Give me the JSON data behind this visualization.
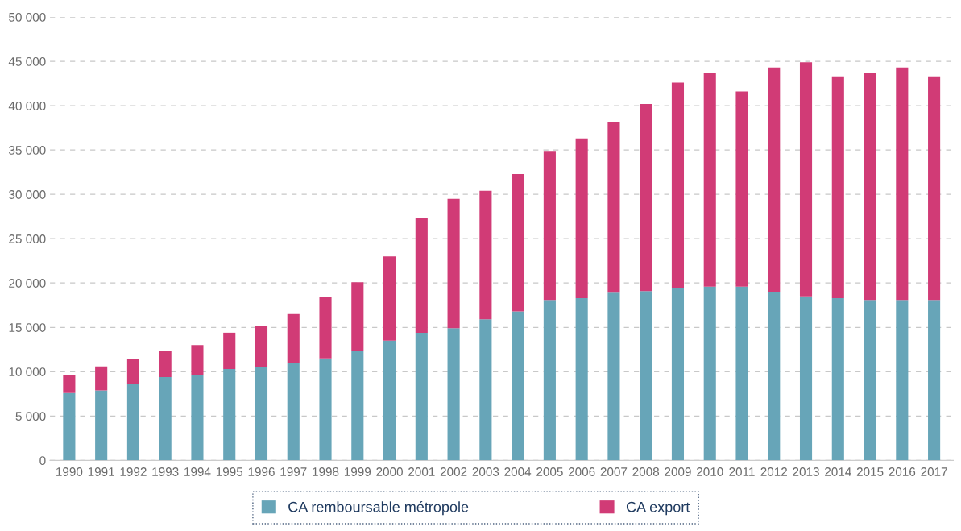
{
  "chart_data": {
    "type": "bar",
    "stacked": true,
    "categories": [
      "1990",
      "1991",
      "1992",
      "1993",
      "1994",
      "1995",
      "1996",
      "1997",
      "1998",
      "1999",
      "2000",
      "2001",
      "2002",
      "2003",
      "2004",
      "2005",
      "2006",
      "2007",
      "2008",
      "2009",
      "2010",
      "2011",
      "2012",
      "2013",
      "2014",
      "2015",
      "2016",
      "2017"
    ],
    "series": [
      {
        "name": "CA remboursable métropole",
        "color": "#67a5b8",
        "values": [
          7600,
          7900,
          8600,
          9400,
          9600,
          10300,
          10500,
          11000,
          11500,
          12400,
          13500,
          14400,
          14900,
          15900,
          16800,
          18100,
          18300,
          18900,
          19100,
          19400,
          19600,
          19600,
          19000,
          18500,
          18300,
          18100,
          18100,
          18100
        ]
      },
      {
        "name": "CA export",
        "color": "#d13b76",
        "values": [
          2000,
          2700,
          2800,
          2900,
          3400,
          4100,
          4700,
          5500,
          6900,
          7700,
          9500,
          12900,
          14600,
          14500,
          15500,
          16700,
          18000,
          19200,
          21100,
          23200,
          24100,
          22000,
          25300,
          26400,
          25000,
          25600,
          26200,
          25200
        ]
      }
    ],
    "ylim": [
      0,
      50000
    ],
    "yticks": [
      0,
      {
        "value": 5000,
        "label": "5 000"
      },
      {
        "value": 10000,
        "label": "10 000"
      },
      {
        "value": 15000,
        "label": "15 000"
      },
      {
        "value": 20000,
        "label": "20 000"
      },
      {
        "value": 25000,
        "label": "25 000"
      },
      {
        "value": 30000,
        "label": "30 000"
      },
      {
        "value": 35000,
        "label": "35 000"
      },
      {
        "value": 40000,
        "label": "40 000"
      },
      {
        "value": 45000,
        "label": "45 000"
      },
      {
        "value": 50000,
        "label": "50 000"
      }
    ],
    "grid": "y",
    "legend": "bottom"
  }
}
